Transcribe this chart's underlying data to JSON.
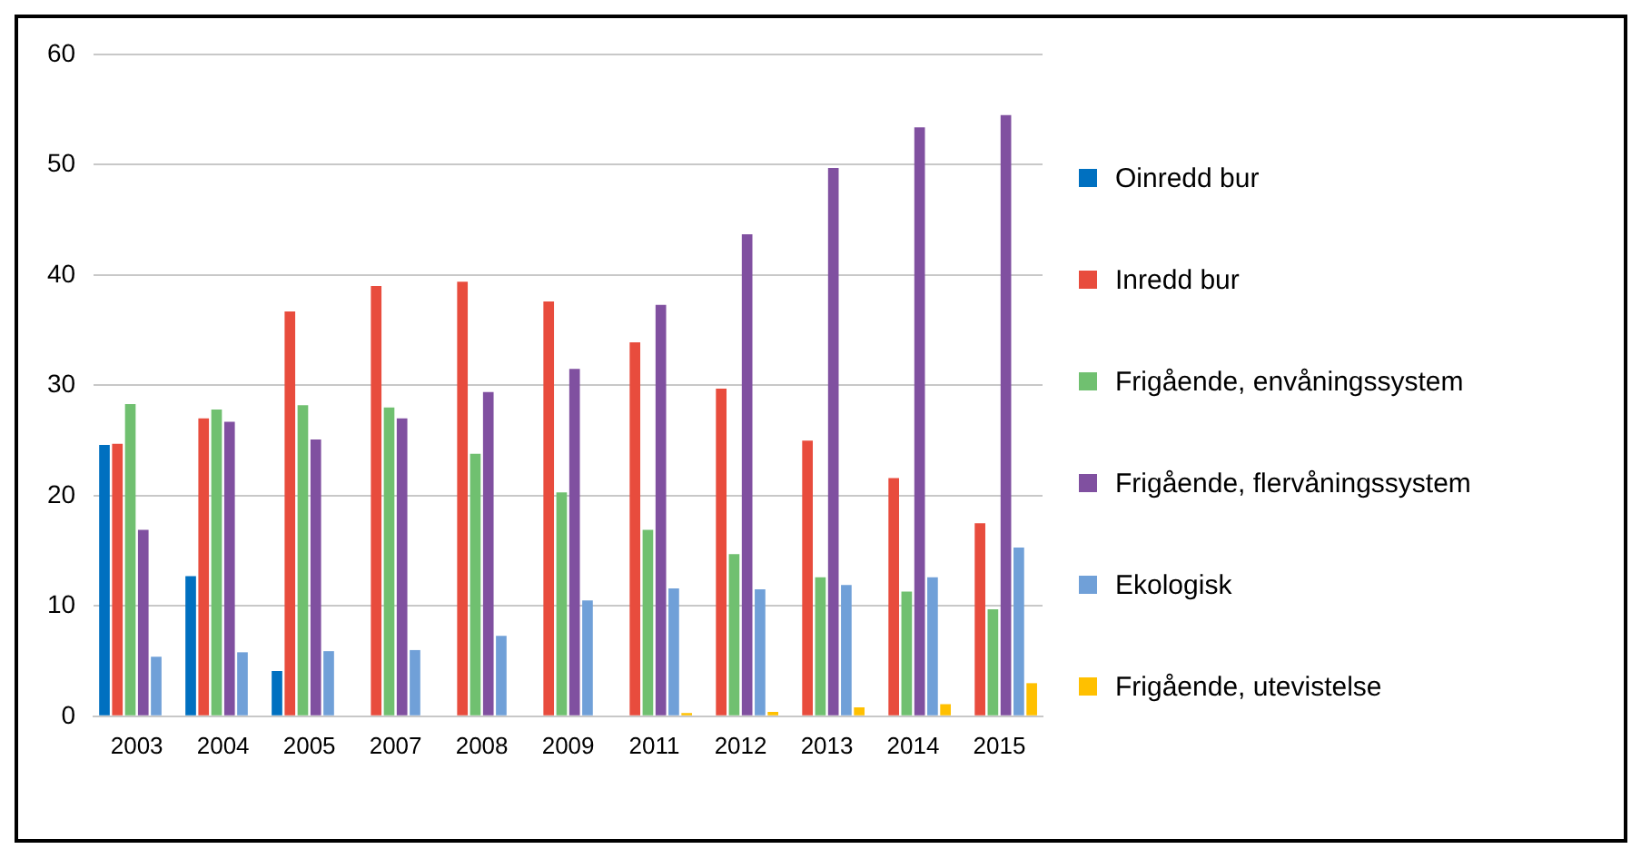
{
  "chart_data": {
    "type": "bar",
    "categories": [
      "2003",
      "2004",
      "2005",
      "2007",
      "2008",
      "2009",
      "2011",
      "2012",
      "2013",
      "2014",
      "2015"
    ],
    "series": [
      {
        "name": "Oinredd bur",
        "color": "#0070c0",
        "values": [
          24.6,
          12.7,
          4.1,
          null,
          null,
          null,
          null,
          null,
          null,
          null,
          null
        ]
      },
      {
        "name": "Inredd bur",
        "color": "#e84c3d",
        "values": [
          24.7,
          27.0,
          36.7,
          39.0,
          39.4,
          37.6,
          33.9,
          29.7,
          25.0,
          21.6,
          17.5
        ]
      },
      {
        "name": "Frigående, envåningssystem",
        "color": "#70c070",
        "values": [
          28.3,
          27.8,
          28.2,
          28.0,
          23.8,
          20.3,
          16.9,
          14.7,
          12.6,
          11.3,
          9.7
        ]
      },
      {
        "name": "Frigående, flervåningssystem",
        "color": "#8050a0",
        "values": [
          16.9,
          26.7,
          25.1,
          27.0,
          29.4,
          31.5,
          37.3,
          43.7,
          49.7,
          53.4,
          54.5
        ]
      },
      {
        "name": "Ekologisk",
        "color": "#70a0d8",
        "values": [
          5.4,
          5.8,
          5.9,
          6.0,
          7.3,
          10.5,
          11.6,
          11.5,
          11.9,
          12.6,
          15.3
        ]
      },
      {
        "name": "Frigående, utevistelse",
        "color": "#ffc000",
        "values": [
          null,
          null,
          null,
          null,
          null,
          null,
          0.3,
          0.4,
          0.8,
          1.1,
          3.0
        ]
      }
    ],
    "ylim": [
      0,
      60
    ],
    "yticks": [
      0,
      10,
      20,
      30,
      40,
      50,
      60
    ],
    "grid": "y",
    "legend": "right"
  }
}
